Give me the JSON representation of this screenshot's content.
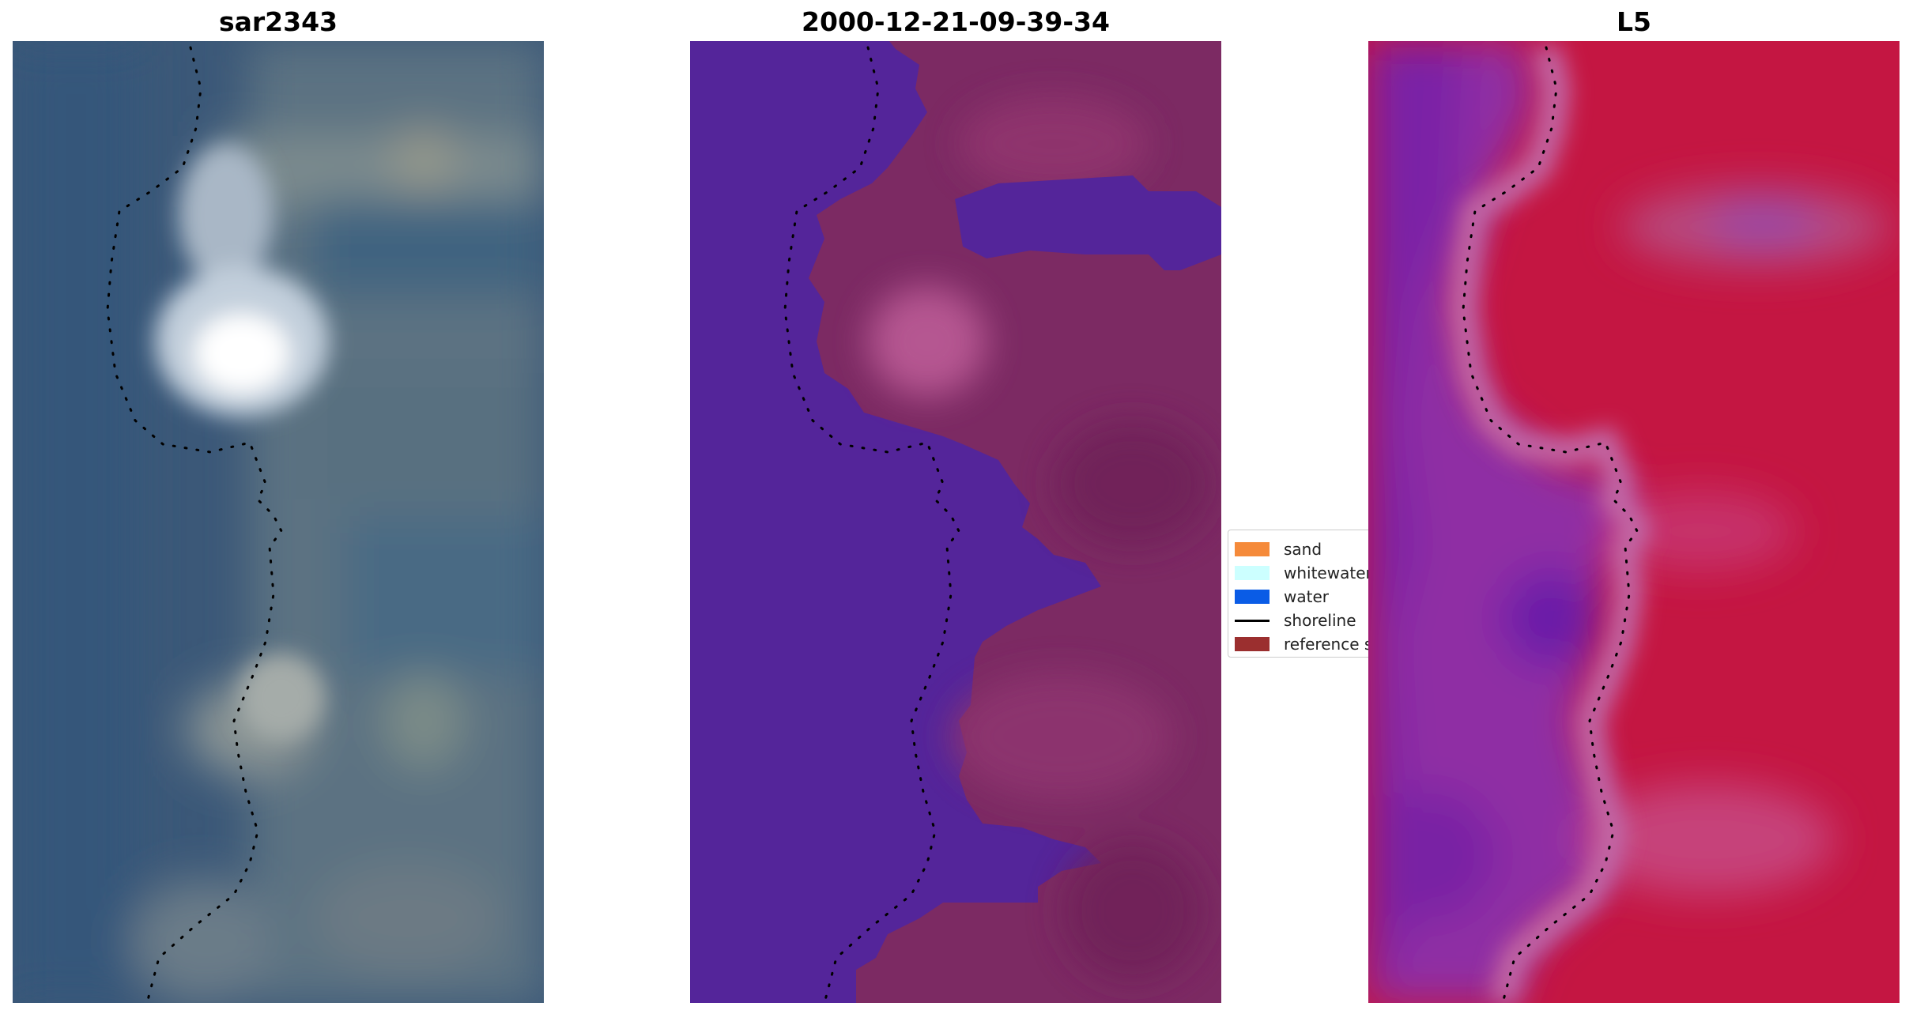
{
  "panels": [
    {
      "title": "sar2343"
    },
    {
      "title": "2000-12-21-09-39-34"
    },
    {
      "title": "L5"
    }
  ],
  "legend": {
    "items": [
      {
        "label": "sand",
        "color": "#f58a3a",
        "kind": "patch"
      },
      {
        "label": "whitewater",
        "color": "#ccffff",
        "kind": "patch"
      },
      {
        "label": "water",
        "color": "#0a5ce6",
        "kind": "patch"
      },
      {
        "label": "shoreline",
        "color": "#000000",
        "kind": "line"
      },
      {
        "label": "reference shoreline",
        "color": "#9b2f2f",
        "kind": "patch"
      }
    ]
  },
  "colors": {
    "rgb_water": "#3a5a7c",
    "rgb_bright": "#ffffff",
    "class_water": "#54259a",
    "class_land": "#7b2a62",
    "index_water": "#8a2ea3",
    "index_land": "#c8103e"
  }
}
